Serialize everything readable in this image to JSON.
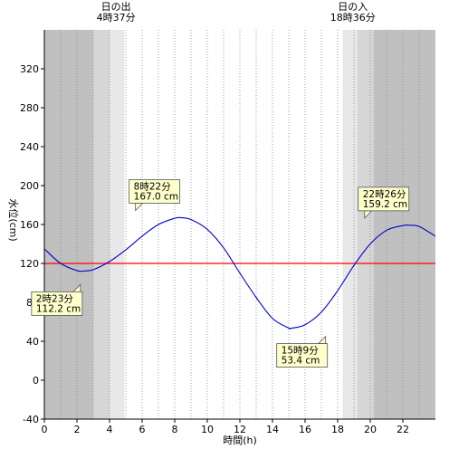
{
  "chart_data": {
    "type": "line",
    "xlabel": "時間(h)",
    "ylabel": "水位(cm)",
    "xlim": [
      0,
      24
    ],
    "ylim": [
      -40,
      360
    ],
    "x_ticks": [
      0,
      2,
      4,
      6,
      8,
      10,
      12,
      14,
      16,
      18,
      20,
      22
    ],
    "x_tick_labels": [
      "0",
      "2",
      "4",
      "6",
      "8",
      "10",
      "12",
      "14",
      "16",
      "18",
      "20",
      "22"
    ],
    "y_ticks": [
      -40,
      0,
      40,
      80,
      120,
      160,
      200,
      240,
      280,
      320
    ],
    "y_tick_labels": [
      "-40",
      "0",
      "40",
      "80",
      "120",
      "160",
      "200",
      "240",
      "280",
      "320"
    ],
    "grid": {
      "vertical_minor_hours": 1,
      "vertical_style": "dotted"
    },
    "sunrise": {
      "line1": "日の出",
      "line2": "4時37分",
      "hour": 4.617
    },
    "sunset": {
      "line1": "日の入",
      "line2": "18時36分",
      "hour": 18.6
    },
    "reference_line": {
      "value": 120,
      "color": "#ff0000"
    },
    "series": [
      {
        "color": "#0000cc",
        "x": [
          0,
          1,
          2,
          2.38,
          3,
          4,
          5,
          6,
          7,
          8,
          8.37,
          9,
          10,
          11,
          12,
          13,
          14,
          15,
          15.15,
          16,
          17,
          18,
          19,
          20,
          21,
          22,
          22.43,
          23,
          24
        ],
        "y": [
          135,
          120,
          112.6,
          112.2,
          113.6,
          122,
          134,
          148,
          160,
          166.4,
          167,
          165.1,
          155,
          136,
          110,
          85,
          63.5,
          53.5,
          53.4,
          57,
          70,
          92,
          118,
          140,
          154,
          158.9,
          159.2,
          158,
          148
        ]
      }
    ],
    "annotations": [
      {
        "line1": "2時23分",
        "line2": "112.2 cm",
        "x": 2.38,
        "y": 112.2,
        "kind": "low"
      },
      {
        "line1": "8時22分",
        "line2": "167.0 cm",
        "x": 8.37,
        "y": 167.0,
        "kind": "high"
      },
      {
        "line1": "15時9分",
        "line2": "53.4 cm",
        "x": 15.15,
        "y": 53.4,
        "kind": "low"
      },
      {
        "line1": "22時26分",
        "line2": "159.2 cm",
        "x": 22.43,
        "y": 159.2,
        "kind": "high"
      }
    ],
    "colors": {
      "night": "#c0c0c0",
      "twilight_dark": "#d6d6d6",
      "twilight_light": "#e8e8e8",
      "day": "#ffffff",
      "annotation_fill": "#ffffcc",
      "axis": "#000000"
    }
  }
}
